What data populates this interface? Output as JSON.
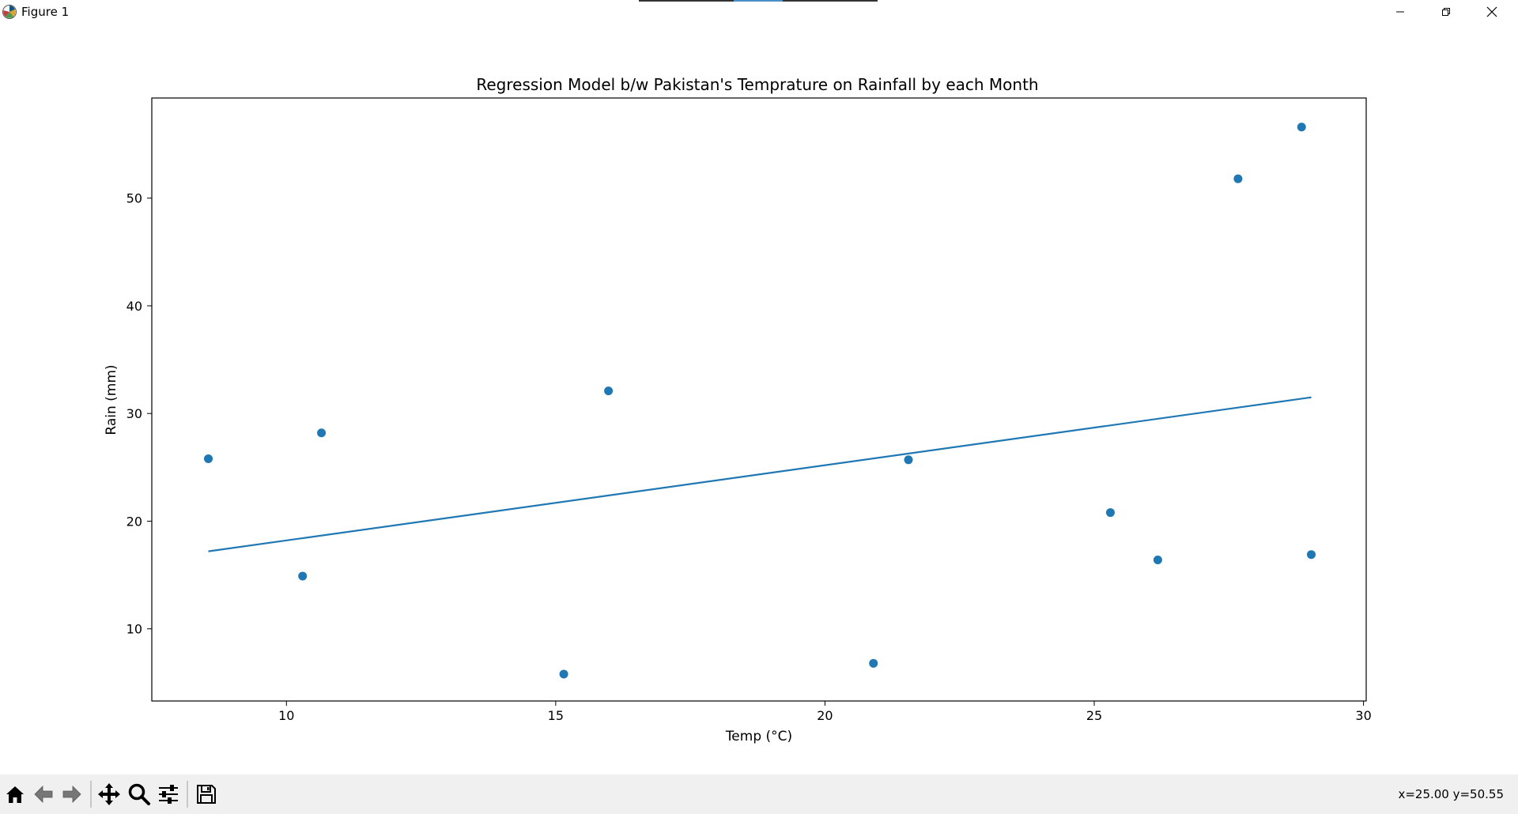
{
  "window": {
    "title": "Figure 1",
    "minimize_icon": "minimize-icon",
    "restore_icon": "restore-icon",
    "close_icon": "close-icon"
  },
  "toolbar": {
    "buttons": [
      {
        "name": "home-button",
        "icon": "home-icon"
      },
      {
        "name": "back-button",
        "icon": "arrow-left-icon"
      },
      {
        "name": "forward-button",
        "icon": "arrow-right-icon"
      },
      {
        "name": "pan-button",
        "icon": "move-icon"
      },
      {
        "name": "zoom-button",
        "icon": "magnifier-icon"
      },
      {
        "name": "subplots-button",
        "icon": "sliders-icon"
      },
      {
        "name": "save-button",
        "icon": "floppy-disk-icon"
      }
    ],
    "coordinates": "x=25.00 y=50.55"
  },
  "chart_data": {
    "type": "scatter",
    "title": "Regression Model b/w Pakistan's Temprature on Rainfall by each Month",
    "xlabel": "Temp (°C)",
    "ylabel": "Rain (mm)",
    "xlim": [
      7.5,
      30.05
    ],
    "ylim": [
      3.3,
      59.3
    ],
    "xticks": [
      10,
      15,
      20,
      25,
      30
    ],
    "yticks": [
      10,
      20,
      30,
      40,
      50
    ],
    "grid": false,
    "point_color": "#1f77b4",
    "line_color": "#1f77b4",
    "points": [
      {
        "x": 8.55,
        "y": 25.8
      },
      {
        "x": 10.3,
        "y": 14.9
      },
      {
        "x": 10.65,
        "y": 28.2
      },
      {
        "x": 15.15,
        "y": 5.8
      },
      {
        "x": 15.98,
        "y": 32.1
      },
      {
        "x": 20.9,
        "y": 6.8
      },
      {
        "x": 21.55,
        "y": 25.7
      },
      {
        "x": 25.3,
        "y": 20.8
      },
      {
        "x": 26.18,
        "y": 16.4
      },
      {
        "x": 27.67,
        "y": 51.8
      },
      {
        "x": 28.85,
        "y": 56.6
      },
      {
        "x": 29.03,
        "y": 16.9
      }
    ],
    "regression_line": {
      "x": [
        8.55,
        29.03
      ],
      "y": [
        17.2,
        31.5
      ]
    }
  }
}
